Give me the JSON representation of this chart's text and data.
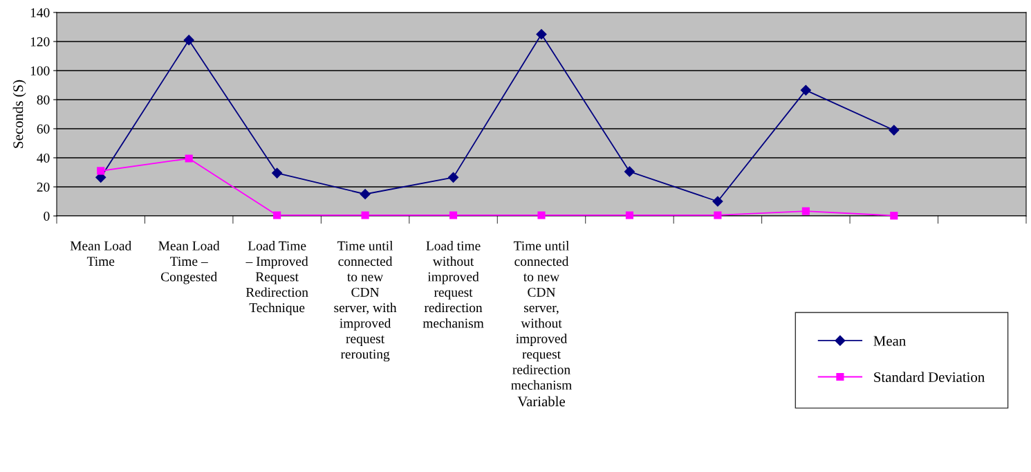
{
  "chart_data": {
    "type": "line",
    "xlabel": "Variable",
    "ylabel": "Seconds (S)",
    "categories": [
      "Mean Load\nTime",
      "Mean Load\nTime –\nCongested",
      "Load Time\n– Improved\nRequest\nRedirection\nTechnique",
      "Time until\nconnected\nto new\nCDN\nserver, with\nimproved\nrequest\nrerouting",
      "Load time\nwithout\nimproved\nrequest\nredirection\nmechanism",
      "Time until\nconnected\nto new\nCDN\nserver,\nwithout\nimproved\nrequest\nredirection\nmechanism",
      null,
      null,
      null,
      null,
      null
    ],
    "series": [
      {
        "name": "Mean",
        "color": "#000080",
        "marker": "diamond",
        "values": [
          26.5,
          121,
          29.5,
          15,
          26.5,
          125,
          30.5,
          10,
          86.5,
          59,
          null
        ]
      },
      {
        "name": "Standard Deviation",
        "color": "#ff00ff",
        "marker": "square",
        "values": [
          31,
          39.5,
          0.5,
          0.5,
          0.5,
          0.5,
          0.5,
          0.5,
          3.3,
          0.2,
          null
        ]
      }
    ],
    "ylim": [
      0,
      140
    ],
    "yticks": [
      0,
      20,
      40,
      60,
      80,
      100,
      120,
      140
    ],
    "grid": "y",
    "legend": "bottom right"
  }
}
